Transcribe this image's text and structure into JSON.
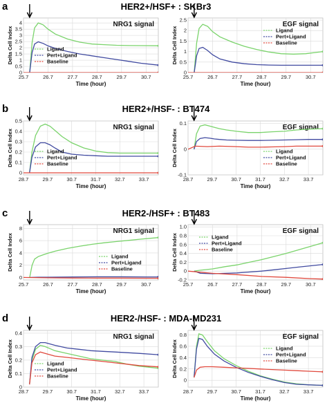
{
  "rows": [
    {
      "letter": "a",
      "title": "HER2+/HSF+ : SKBr3"
    },
    {
      "letter": "b",
      "title": "HER2+/HSF- : BT474"
    },
    {
      "letter": "c",
      "title": "HER2-/HSF+ : BT483"
    },
    {
      "letter": "d",
      "title": "HER2-/HSF- : MDA-MD231"
    }
  ],
  "colors": {
    "ligand": "#7ad36b",
    "pert": "#404aa0",
    "baseline": "#e0483c",
    "grid": "#d9d9d9",
    "arrow": "#000000"
  },
  "chart_data": [
    {
      "type": "line",
      "panel": "a-left",
      "title": "NRG1 signal",
      "xlabel": "Time (hour)",
      "ylabel": "Delta Cell Index",
      "xlim": [
        25.7,
        31.2
      ],
      "ylim": [
        0,
        4.4
      ],
      "xticks": [
        25.7,
        26.7,
        27.7,
        28.7,
        29.7,
        30.7
      ],
      "yticks": [
        0,
        0.5,
        1,
        1.5,
        2,
        2.5,
        3,
        3.5,
        4
      ],
      "ytick_labels": [
        "0",
        "0.5",
        "1",
        "1.5",
        "2",
        "2.5",
        "3",
        "3.5",
        "4"
      ],
      "arrow_x": 25.95,
      "legend": "bottom-left",
      "series": [
        {
          "name": "Ligand",
          "key": "ligand",
          "x": [
            25.95,
            26.05,
            26.15,
            26.3,
            26.5,
            26.7,
            27.0,
            27.5,
            28.0,
            28.5,
            29.0,
            29.5,
            30.0,
            30.5,
            31.2
          ],
          "y": [
            0,
            2.4,
            3.6,
            4.0,
            3.85,
            3.5,
            3.1,
            2.7,
            2.45,
            2.3,
            2.25,
            2.2,
            2.18,
            2.17,
            2.16
          ]
        },
        {
          "name": "Pert+Ligand",
          "key": "pert",
          "x": [
            25.95,
            26.05,
            26.15,
            26.3,
            26.5,
            26.7,
            27.0,
            27.5,
            28.0,
            28.5,
            29.0,
            29.5,
            30.0,
            30.5,
            31.2
          ],
          "y": [
            0,
            1.6,
            2.3,
            2.48,
            2.35,
            2.15,
            1.95,
            1.7,
            1.5,
            1.35,
            1.2,
            1.05,
            0.9,
            0.75,
            0.6
          ]
        },
        {
          "name": "Baseline",
          "key": "baseline",
          "x": [
            25.7,
            26.7,
            27.7,
            28.7,
            29.7,
            30.7,
            31.2
          ],
          "y": [
            0,
            0,
            0,
            0,
            0,
            0,
            0
          ]
        }
      ]
    },
    {
      "type": "line",
      "panel": "a-right",
      "title": "EGF signal",
      "xlabel": "Time (hour)",
      "ylabel": "Delta Cell Index",
      "xlim": [
        25.7,
        31.2
      ],
      "ylim": [
        0,
        2.6
      ],
      "xticks": [
        25.7,
        26.7,
        27.7,
        28.7,
        29.7,
        30.7
      ],
      "yticks": [
        0,
        0.5,
        1,
        1.5,
        2,
        2.5
      ],
      "ytick_labels": [
        "0",
        "0.5",
        "1",
        "1.5",
        "2",
        "2.5"
      ],
      "arrow_x": 25.95,
      "legend": "top-right",
      "series": [
        {
          "name": "Ligand",
          "key": "ligand",
          "x": [
            25.95,
            26.05,
            26.15,
            26.3,
            26.5,
            26.7,
            27.0,
            27.5,
            28.0,
            28.5,
            29.0,
            29.5,
            30.0,
            30.5,
            31.2
          ],
          "y": [
            0,
            1.4,
            2.1,
            2.3,
            2.2,
            1.95,
            1.7,
            1.45,
            1.25,
            1.1,
            0.98,
            0.9,
            0.88,
            0.9,
            1.0
          ]
        },
        {
          "name": "Pert+Ligand",
          "key": "pert",
          "x": [
            25.95,
            26.05,
            26.15,
            26.3,
            26.5,
            26.7,
            27.0,
            27.5,
            28.0,
            28.5,
            29.0,
            29.5,
            30.0,
            30.5,
            31.2
          ],
          "y": [
            0,
            0.8,
            1.15,
            1.2,
            1.05,
            0.85,
            0.65,
            0.5,
            0.42,
            0.38,
            0.36,
            0.35,
            0.35,
            0.35,
            0.35
          ]
        },
        {
          "name": "Baseline",
          "key": "baseline",
          "x": [
            25.7,
            26.7,
            27.7,
            28.7,
            29.7,
            30.7,
            31.2
          ],
          "y": [
            0,
            0,
            0,
            0,
            0,
            0,
            0
          ]
        }
      ]
    },
    {
      "type": "line",
      "panel": "b-left",
      "title": "NRG1 signal",
      "xlabel": "Time (hour)",
      "ylabel": "Delta Cell Index",
      "xlim": [
        28.7,
        34.3
      ],
      "ylim": [
        -0.02,
        0.5
      ],
      "xticks": [
        28.7,
        29.7,
        30.7,
        31.7,
        32.7,
        33.7
      ],
      "yticks": [
        0,
        0.1,
        0.2,
        0.3,
        0.4,
        0.5
      ],
      "ytick_labels": [
        "0",
        "0.1",
        "0.2",
        "0.3",
        "0.4",
        "0.5"
      ],
      "arrow_x": 28.95,
      "legend": "bottom-left",
      "series": [
        {
          "name": "Ligand",
          "key": "ligand",
          "x": [
            28.95,
            29.05,
            29.2,
            29.4,
            29.6,
            29.8,
            30.0,
            30.3,
            30.7,
            31.2,
            31.7,
            32.2,
            32.7,
            33.2,
            33.7,
            34.3
          ],
          "y": [
            0,
            0.2,
            0.36,
            0.45,
            0.47,
            0.45,
            0.41,
            0.35,
            0.29,
            0.24,
            0.21,
            0.195,
            0.19,
            0.19,
            0.19,
            0.19
          ]
        },
        {
          "name": "Pert+Ligand",
          "key": "pert",
          "x": [
            28.95,
            29.05,
            29.2,
            29.4,
            29.6,
            29.8,
            30.0,
            30.3,
            30.7,
            31.2,
            31.7,
            32.2,
            32.7,
            33.2,
            33.7,
            34.3
          ],
          "y": [
            0,
            0.15,
            0.25,
            0.29,
            0.29,
            0.27,
            0.24,
            0.2,
            0.18,
            0.17,
            0.165,
            0.16,
            0.16,
            0.16,
            0.16,
            0.16
          ]
        },
        {
          "name": "Baseline",
          "key": "baseline",
          "x": [
            28.7,
            29.7,
            30.7,
            31.7,
            32.7,
            33.7,
            34.3
          ],
          "y": [
            0,
            0,
            0,
            0,
            0,
            0,
            0
          ]
        }
      ]
    },
    {
      "type": "line",
      "panel": "b-right",
      "title": "EGF signal",
      "xlabel": "Time (hour)",
      "ylabel": "Delta Cell Index",
      "xlim": [
        28.7,
        34.3
      ],
      "ylim": [
        -0.1,
        0.11
      ],
      "xticks": [
        28.7,
        29.7,
        30.7,
        31.7,
        32.7,
        33.7
      ],
      "yticks": [
        -0.1,
        0,
        0.1
      ],
      "ytick_labels": [
        "-0.1",
        "0",
        "0.1"
      ],
      "arrow_x": 28.95,
      "legend": "bottom-right",
      "series": [
        {
          "name": "Ligand",
          "key": "ligand",
          "x": [
            28.95,
            29.05,
            29.2,
            29.4,
            29.6,
            29.8,
            30.0,
            30.3,
            30.7,
            31.2,
            31.7,
            32.2,
            32.7,
            33.2,
            33.7,
            34.3
          ],
          "y": [
            0,
            0.06,
            0.09,
            0.095,
            0.09,
            0.085,
            0.08,
            0.075,
            0.07,
            0.065,
            0.065,
            0.068,
            0.07,
            0.075,
            0.078,
            0.08
          ]
        },
        {
          "name": "Pert+Ligand",
          "key": "pert",
          "x": [
            28.95,
            29.05,
            29.2,
            29.4,
            29.6,
            29.8,
            30.0,
            30.3,
            30.7,
            31.2,
            31.7,
            32.2,
            32.7,
            33.2,
            33.7,
            34.3
          ],
          "y": [
            0,
            0.03,
            0.042,
            0.045,
            0.043,
            0.04,
            0.038,
            0.036,
            0.035,
            0.034,
            0.034,
            0.035,
            0.036,
            0.037,
            0.038,
            0.038
          ]
        },
        {
          "name": "Baseline",
          "key": "baseline",
          "x": [
            28.7,
            29.0,
            29.5,
            30.0,
            30.7,
            31.2,
            31.7,
            32.2,
            32.7,
            33.2,
            33.7,
            34.3
          ],
          "y": [
            0,
            0.012,
            0.01,
            0.012,
            0.01,
            0.008,
            0.008,
            0.009,
            0.01,
            0.012,
            0.012,
            0.012
          ]
        }
      ]
    },
    {
      "type": "line",
      "panel": "c-left",
      "title": "NRG1 signal",
      "xlabel": "Time (hour)",
      "ylabel": "Delta Cell Index",
      "xlim": [
        25.7,
        31.2
      ],
      "ylim": [
        -0.4,
        8.6
      ],
      "xticks": [
        25.7,
        26.7,
        27.7,
        28.7,
        29.7,
        30.7
      ],
      "yticks": [
        0,
        2,
        4,
        6,
        8
      ],
      "ytick_labels": [
        "0",
        "2",
        "4",
        "6",
        "8"
      ],
      "arrow_x": 25.95,
      "legend": "bottom-right",
      "series": [
        {
          "name": "Ligand",
          "key": "ligand",
          "x": [
            25.95,
            26.05,
            26.15,
            26.3,
            26.5,
            26.7,
            27.0,
            27.5,
            28.0,
            28.5,
            29.0,
            29.5,
            30.0,
            30.5,
            31.2
          ],
          "y": [
            0,
            2.0,
            3.0,
            3.4,
            3.7,
            3.95,
            4.3,
            4.75,
            5.1,
            5.4,
            5.65,
            5.85,
            6.05,
            6.25,
            6.5
          ]
        },
        {
          "name": "Pert+Ligand",
          "key": "pert",
          "x": [
            25.95,
            26.3,
            26.7,
            27.7,
            28.7,
            29.7,
            30.7,
            31.2
          ],
          "y": [
            0,
            0.05,
            0.05,
            0.1,
            0.12,
            0.12,
            0.1,
            0.1
          ]
        },
        {
          "name": "Baseline",
          "key": "baseline",
          "x": [
            25.7,
            26.7,
            27.7,
            28.7,
            29.7,
            30.7,
            31.2
          ],
          "y": [
            0,
            -0.05,
            -0.08,
            -0.1,
            -0.1,
            -0.12,
            -0.12
          ]
        }
      ]
    },
    {
      "type": "line",
      "panel": "c-right",
      "title": "EGF signal",
      "xlabel": "Time (hour)",
      "ylabel": "Delta Cell Index",
      "xlim": [
        25.7,
        31.2
      ],
      "ylim": [
        -0.2,
        1.05
      ],
      "xticks": [
        25.7,
        26.7,
        27.7,
        28.7,
        29.7,
        30.7
      ],
      "yticks": [
        -0.2,
        0,
        0.2,
        0.4,
        0.6,
        0.8,
        1.0
      ],
      "ytick_labels": [
        "-0.2",
        "0",
        "0.2",
        "0.4",
        "0.6",
        "0.8",
        "1.0"
      ],
      "arrow_x": 25.95,
      "legend": "top-left",
      "series": [
        {
          "name": "Ligand",
          "key": "ligand",
          "x": [
            25.95,
            26.2,
            26.7,
            27.2,
            27.7,
            28.2,
            28.7,
            29.2,
            29.7,
            30.2,
            30.7,
            31.2
          ],
          "y": [
            0,
            0.02,
            0.05,
            0.1,
            0.14,
            0.2,
            0.26,
            0.33,
            0.4,
            0.48,
            0.56,
            0.64
          ]
        },
        {
          "name": "Pert+Ligand",
          "key": "pert",
          "x": [
            25.95,
            26.2,
            26.7,
            27.2,
            27.7,
            28.2,
            28.7,
            29.2,
            29.7,
            30.2,
            30.7,
            31.2
          ],
          "y": [
            0,
            -0.05,
            -0.06,
            -0.05,
            -0.04,
            -0.02,
            0,
            0.03,
            0.06,
            0.09,
            0.12,
            0.15
          ]
        },
        {
          "name": "Baseline",
          "key": "baseline",
          "x": [
            25.7,
            26.7,
            27.7,
            28.7,
            29.7,
            30.7,
            31.2
          ],
          "y": [
            0,
            -0.05,
            -0.08,
            -0.12,
            -0.14,
            -0.17,
            -0.18
          ]
        }
      ]
    },
    {
      "type": "line",
      "panel": "d-left",
      "title": "NRG1 signal",
      "xlabel": "Time (hour)",
      "ylabel": "Delta Cell Index",
      "xlim": [
        28.7,
        34.3
      ],
      "ylim": [
        0,
        0.42
      ],
      "xticks": [
        28.7,
        29.7,
        30.7,
        31.7,
        32.7,
        33.7
      ],
      "yticks": [
        0,
        0.1,
        0.2,
        0.3,
        0.4
      ],
      "ytick_labels": [
        "0",
        "0.1",
        "0.2",
        "0.3",
        "0.4"
      ],
      "arrow_x": 28.95,
      "legend": "bottom-left",
      "series": [
        {
          "name": "Ligand",
          "key": "ligand",
          "x": [
            28.95,
            29.05,
            29.2,
            29.4,
            29.6,
            30.0,
            30.5,
            31.0,
            31.5,
            32.0,
            32.5,
            33.0,
            33.5,
            34.3
          ],
          "y": [
            0.02,
            0.2,
            0.28,
            0.31,
            0.3,
            0.27,
            0.25,
            0.23,
            0.21,
            0.2,
            0.19,
            0.17,
            0.155,
            0.14
          ]
        },
        {
          "name": "Pert+Ligand",
          "key": "pert",
          "x": [
            28.95,
            29.05,
            29.2,
            29.4,
            29.6,
            30.0,
            30.5,
            31.0,
            31.5,
            32.0,
            32.5,
            33.0,
            33.5,
            34.3
          ],
          "y": [
            0.02,
            0.22,
            0.3,
            0.33,
            0.33,
            0.31,
            0.29,
            0.28,
            0.27,
            0.265,
            0.26,
            0.255,
            0.25,
            0.24
          ]
        },
        {
          "name": "Baseline",
          "key": "baseline",
          "x": [
            28.95,
            29.05,
            29.2,
            29.4,
            29.6,
            30.0,
            30.5,
            31.0,
            31.5,
            32.0,
            32.5,
            33.0,
            33.5,
            34.3
          ],
          "y": [
            0.02,
            0.18,
            0.24,
            0.26,
            0.25,
            0.23,
            0.22,
            0.21,
            0.2,
            0.19,
            0.18,
            0.17,
            0.16,
            0.15
          ]
        }
      ]
    },
    {
      "type": "line",
      "panel": "d-right",
      "title": "EGF signal",
      "xlabel": "Time (hour)",
      "ylabel": "Delta Cell Index",
      "xlim": [
        28.7,
        34.3
      ],
      "ylim": [
        -0.12,
        0.88
      ],
      "xticks": [
        28.7,
        29.7,
        30.7,
        31.7,
        32.7,
        33.7
      ],
      "yticks": [
        0,
        0.2,
        0.4,
        0.6,
        0.8
      ],
      "ytick_labels": [
        "0",
        "0.2",
        "0.4",
        "0.6",
        "0.8"
      ],
      "arrow_x": 28.95,
      "legend": "center-right",
      "series": [
        {
          "name": "Ligand",
          "key": "ligand",
          "x": [
            28.95,
            29.05,
            29.15,
            29.3,
            29.5,
            29.8,
            30.2,
            30.7,
            31.2,
            31.7,
            32.2,
            32.7,
            33.2,
            33.7,
            34.3
          ],
          "y": [
            0.05,
            0.6,
            0.82,
            0.8,
            0.68,
            0.52,
            0.38,
            0.26,
            0.16,
            0.08,
            0.02,
            -0.03,
            -0.06,
            -0.08,
            -0.09
          ]
        },
        {
          "name": "Pert+Ligand",
          "key": "pert",
          "x": [
            28.95,
            29.05,
            29.15,
            29.3,
            29.5,
            29.8,
            30.2,
            30.7,
            31.2,
            31.7,
            32.2,
            32.7,
            33.2,
            33.7,
            34.3
          ],
          "y": [
            0.05,
            0.55,
            0.74,
            0.72,
            0.6,
            0.46,
            0.34,
            0.23,
            0.14,
            0.07,
            0.01,
            -0.04,
            -0.07,
            -0.08,
            -0.09
          ]
        },
        {
          "name": "Baseline",
          "key": "baseline",
          "x": [
            28.95,
            29.05,
            29.2,
            29.4,
            29.7,
            30.2,
            30.7,
            31.2,
            31.7,
            32.2,
            32.7,
            33.2,
            33.7,
            34.3
          ],
          "y": [
            0.05,
            0.18,
            0.23,
            0.24,
            0.24,
            0.23,
            0.22,
            0.21,
            0.2,
            0.19,
            0.18,
            0.17,
            0.16,
            0.15
          ]
        }
      ]
    }
  ]
}
